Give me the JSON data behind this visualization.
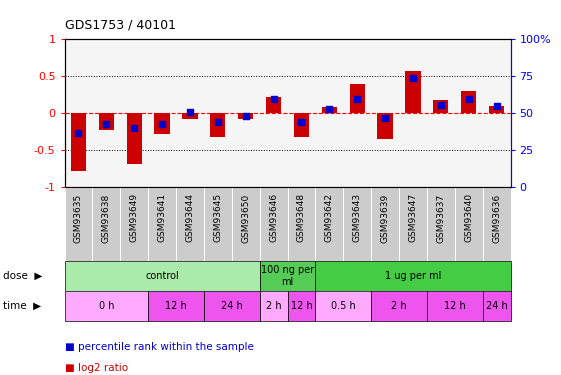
{
  "title": "GDS1753 / 40101",
  "samples": [
    "GSM93635",
    "GSM93638",
    "GSM93649",
    "GSM93641",
    "GSM93644",
    "GSM93645",
    "GSM93650",
    "GSM93646",
    "GSM93648",
    "GSM93642",
    "GSM93643",
    "GSM93639",
    "GSM93647",
    "GSM93637",
    "GSM93640",
    "GSM93636"
  ],
  "log2_ratio": [
    -0.78,
    -0.22,
    -0.68,
    -0.28,
    -0.07,
    -0.32,
    -0.08,
    0.22,
    -0.32,
    0.09,
    0.4,
    -0.35,
    0.57,
    0.18,
    0.3,
    0.1
  ],
  "percentile": [
    37,
    43,
    40,
    43,
    51,
    44,
    48,
    60,
    44,
    53,
    60,
    47,
    74,
    56,
    60,
    55
  ],
  "ylim": [
    -1,
    1
  ],
  "yticks_left": [
    -1,
    -0.5,
    0,
    0.5,
    1
  ],
  "yticks_right": [
    0,
    25,
    50,
    75,
    100
  ],
  "bar_color": "#cc0000",
  "dot_color": "#0000cc",
  "background_color": "#ffffff",
  "dose_groups": [
    {
      "label": "control",
      "start": 0,
      "end": 7,
      "color": "#aaeaaa"
    },
    {
      "label": "100 ng per\nml",
      "start": 7,
      "end": 9,
      "color": "#55cc55"
    },
    {
      "label": "1 ug per ml",
      "start": 9,
      "end": 16,
      "color": "#44cc44"
    }
  ],
  "time_groups": [
    {
      "label": "0 h",
      "start": 0,
      "end": 3,
      "color": "#ffaaff"
    },
    {
      "label": "12 h",
      "start": 3,
      "end": 5,
      "color": "#ee55ee"
    },
    {
      "label": "24 h",
      "start": 5,
      "end": 7,
      "color": "#ee55ee"
    },
    {
      "label": "2 h",
      "start": 7,
      "end": 8,
      "color": "#ffaaff"
    },
    {
      "label": "12 h",
      "start": 8,
      "end": 9,
      "color": "#ee55ee"
    },
    {
      "label": "0.5 h",
      "start": 9,
      "end": 11,
      "color": "#ffaaff"
    },
    {
      "label": "2 h",
      "start": 11,
      "end": 13,
      "color": "#ee55ee"
    },
    {
      "label": "12 h",
      "start": 13,
      "end": 15,
      "color": "#ee55ee"
    },
    {
      "label": "24 h",
      "start": 15,
      "end": 16,
      "color": "#ee55ee"
    }
  ],
  "legend_items": [
    {
      "label": "log2 ratio",
      "color": "#cc0000"
    },
    {
      "label": "percentile rank within the sample",
      "color": "#0000cc"
    }
  ]
}
